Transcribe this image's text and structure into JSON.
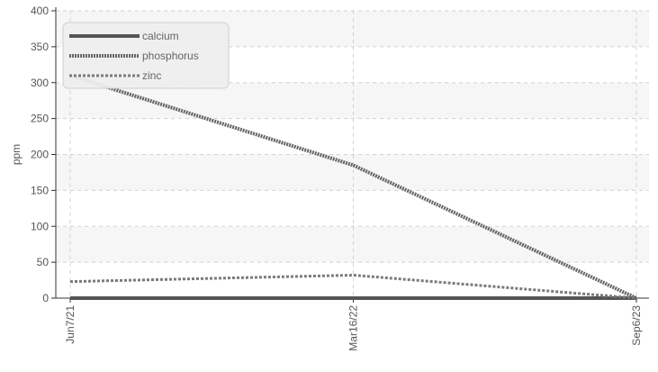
{
  "chart_data": {
    "type": "line",
    "title": "",
    "xlabel": "",
    "ylabel": "ppm",
    "x": [
      "Jun7/21",
      "Mar16/22",
      "Sep6/23"
    ],
    "ylim": [
      0,
      400
    ],
    "yticks": [
      0,
      50,
      100,
      150,
      200,
      250,
      300,
      350,
      400
    ],
    "grid": true,
    "legend_position": "top-left",
    "series": [
      {
        "name": "calcium",
        "values": [
          0,
          0,
          0
        ],
        "color": "#555555",
        "style": "solid"
      },
      {
        "name": "phosphorus",
        "values": [
          310,
          185,
          0
        ],
        "color": "#666666",
        "style": "dotted-thick"
      },
      {
        "name": "zinc",
        "values": [
          23,
          32,
          0
        ],
        "color": "#7a7a7a",
        "style": "dashed"
      }
    ]
  }
}
